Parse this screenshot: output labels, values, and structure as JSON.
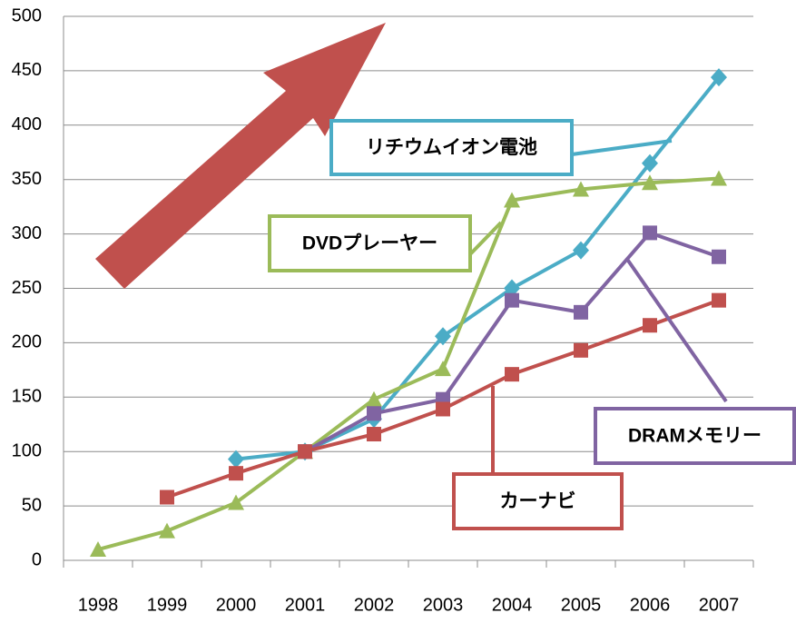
{
  "chart_data": {
    "type": "line",
    "categories": [
      "1998",
      "1999",
      "2000",
      "2001",
      "2002",
      "2003",
      "2004",
      "2005",
      "2006",
      "2007"
    ],
    "series": [
      {
        "name": "リチウムイオン電池",
        "color": "#4bacc6",
        "marker": "diamond",
        "values": [
          null,
          null,
          93,
          100,
          130,
          206,
          250,
          285,
          365,
          444
        ]
      },
      {
        "name": "DVDプレーヤー",
        "color": "#9bbb59",
        "marker": "triangle",
        "values": [
          10,
          27,
          53,
          100,
          148,
          176,
          331,
          341,
          347,
          351
        ]
      },
      {
        "name": "DRAMメモリー",
        "color": "#8064a2",
        "marker": "square",
        "values": [
          null,
          null,
          null,
          100,
          135,
          148,
          239,
          228,
          301,
          279
        ]
      },
      {
        "name": "カーナビ",
        "color": "#c0504d",
        "marker": "square",
        "values": [
          null,
          58,
          80,
          100,
          116,
          139,
          171,
          193,
          216,
          239
        ]
      }
    ],
    "ylim": [
      0,
      500
    ],
    "yticks": [
      0,
      50,
      100,
      150,
      200,
      250,
      300,
      350,
      400,
      450,
      500
    ],
    "grid": true
  }
}
